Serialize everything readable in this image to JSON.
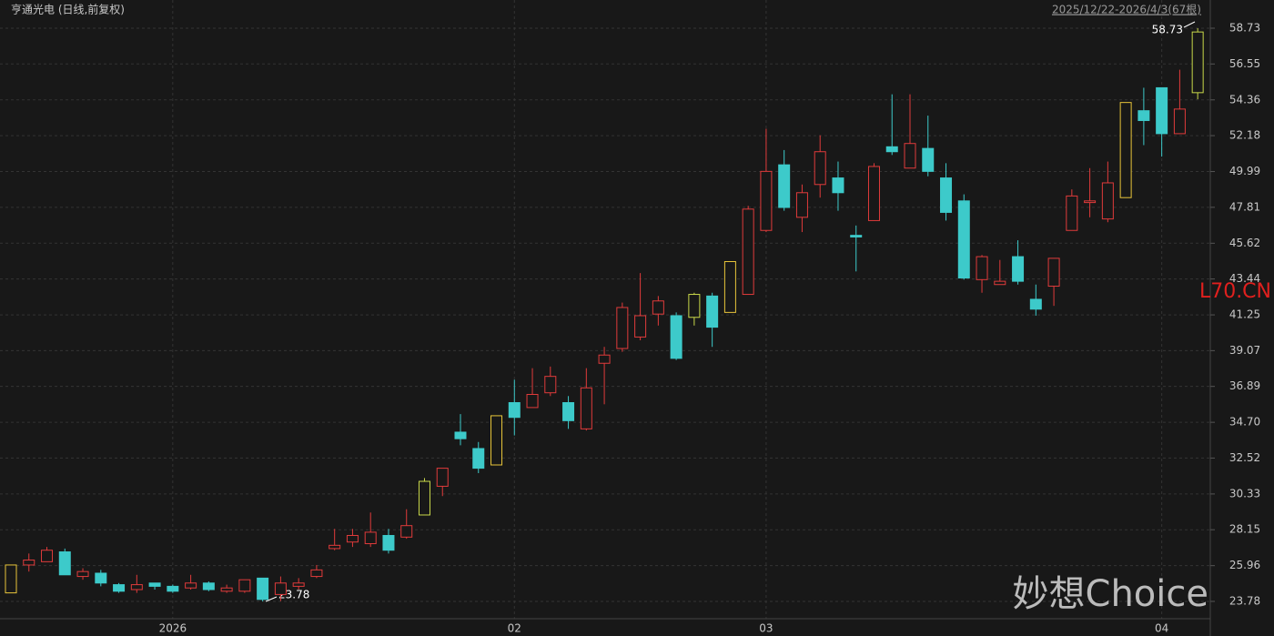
{
  "chart_data": {
    "type": "candlestick",
    "title": "亨通光电 (日线,前复权)",
    "range_label": "2025/12/22-2026/4/3(67根)",
    "max_label": "58.73",
    "min_label": "23.78",
    "code_label": "L70.CN",
    "watermark": "妙想Choice",
    "categories": [
      null,
      null,
      null,
      null,
      null,
      null,
      null,
      null,
      null,
      null,
      null,
      null,
      null,
      null,
      null,
      null,
      null,
      null,
      null,
      null,
      null,
      null,
      null,
      null,
      null,
      null,
      null,
      null,
      null,
      null,
      null,
      null,
      null,
      null,
      null,
      null,
      null,
      null,
      null,
      null,
      null,
      null,
      null,
      null,
      null,
      null,
      null,
      null,
      null,
      null,
      null,
      null,
      null,
      null,
      null,
      null,
      null,
      null,
      null,
      null,
      null,
      null,
      null,
      null,
      null,
      null,
      null
    ],
    "open": [
      24.3,
      26.0,
      26.2,
      26.8,
      25.3,
      25.5,
      24.8,
      24.5,
      24.9,
      24.7,
      24.6,
      24.9,
      24.4,
      24.4,
      25.2,
      24.2,
      24.7,
      25.3,
      27.0,
      27.4,
      27.3,
      27.8,
      27.7,
      29.05,
      30.8,
      34.1,
      33.1,
      32.1,
      35.9,
      35.6,
      36.5,
      35.9,
      34.3,
      38.3,
      39.2,
      39.9,
      41.3,
      41.2,
      41.1,
      42.4,
      41.4,
      42.5,
      46.4,
      50.4,
      47.2,
      49.2,
      49.6,
      46.1,
      47.0,
      51.5,
      50.2,
      51.4,
      49.6,
      48.2,
      43.4,
      43.1,
      44.8,
      42.2,
      43.0,
      46.4,
      48.1,
      47.1,
      48.4,
      53.7,
      55.1,
      52.3,
      54.8
    ],
    "high": [
      26.0,
      26.7,
      27.1,
      27.0,
      25.8,
      25.7,
      24.9,
      25.4,
      24.9,
      24.8,
      25.4,
      25.0,
      24.8,
      25.1,
      25.2,
      25.3,
      25.2,
      26.0,
      28.2,
      28.2,
      29.2,
      28.2,
      29.4,
      31.3,
      31.9,
      35.2,
      33.5,
      35.1,
      37.3,
      38.0,
      38.1,
      36.3,
      38.0,
      39.3,
      42.0,
      43.8,
      42.4,
      41.4,
      42.6,
      42.6,
      44.5,
      47.9,
      52.6,
      51.3,
      49.2,
      52.2,
      50.6,
      46.7,
      50.5,
      54.7,
      54.7,
      53.4,
      50.5,
      48.6,
      44.9,
      44.6,
      45.8,
      43.1,
      44.7,
      48.9,
      50.2,
      50.6,
      54.2,
      55.1,
      55.1,
      56.2,
      58.73
    ],
    "low": [
      24.3,
      25.6,
      26.2,
      25.4,
      25.1,
      24.7,
      24.3,
      24.3,
      24.5,
      24.3,
      24.5,
      24.4,
      24.3,
      24.3,
      23.78,
      23.8,
      24.5,
      25.2,
      26.9,
      27.1,
      27.1,
      26.7,
      27.6,
      29.05,
      30.2,
      33.3,
      31.6,
      32.1,
      33.9,
      35.6,
      36.3,
      34.3,
      34.2,
      35.8,
      39.0,
      39.7,
      40.6,
      38.5,
      40.6,
      39.3,
      41.4,
      42.5,
      46.3,
      47.6,
      46.3,
      48.4,
      47.6,
      43.9,
      47.0,
      51.0,
      50.2,
      49.7,
      47.0,
      43.4,
      42.6,
      43.1,
      43.1,
      41.2,
      41.8,
      46.4,
      47.2,
      46.9,
      48.4,
      51.6,
      50.9,
      52.3,
      54.4
    ],
    "close": [
      26.0,
      26.3,
      26.9,
      25.4,
      25.6,
      24.9,
      24.4,
      24.8,
      24.7,
      24.4,
      24.9,
      24.5,
      24.6,
      25.1,
      23.9,
      24.9,
      24.9,
      25.7,
      27.2,
      27.8,
      28.0,
      26.9,
      28.4,
      31.1,
      31.9,
      33.7,
      31.9,
      35.1,
      35.0,
      36.4,
      37.5,
      34.8,
      36.8,
      38.8,
      41.7,
      41.2,
      42.1,
      38.6,
      42.5,
      40.5,
      44.5,
      47.7,
      50.0,
      47.8,
      48.7,
      51.2,
      48.7,
      46.0,
      50.3,
      51.2,
      51.7,
      50.0,
      47.5,
      43.5,
      44.8,
      43.3,
      43.3,
      41.6,
      44.7,
      48.5,
      48.2,
      49.3,
      54.2,
      53.1,
      52.3,
      53.8,
      58.5
    ],
    "colors": [
      "#e8c53a",
      "#e03b3b",
      "#e03b3b",
      "#3dcaca",
      "#e03b3b",
      "#3dcaca",
      "#3dcaca",
      "#e03b3b",
      "#3dcaca",
      "#3dcaca",
      "#e03b3b",
      "#3dcaca",
      "#e03b3b",
      "#e03b3b",
      "#3dcaca",
      "#e03b3b",
      "#e03b3b",
      "#e03b3b",
      "#e03b3b",
      "#e03b3b",
      "#e03b3b",
      "#3dcaca",
      "#e03b3b",
      "#c9d94a",
      "#e03b3b",
      "#3dcaca",
      "#3dcaca",
      "#e8c53a",
      "#3dcaca",
      "#e03b3b",
      "#e03b3b",
      "#3dcaca",
      "#e03b3b",
      "#e03b3b",
      "#e03b3b",
      "#e03b3b",
      "#e03b3b",
      "#3dcaca",
      "#c9d94a",
      "#3dcaca",
      "#e8c53a",
      "#e03b3b",
      "#e03b3b",
      "#3dcaca",
      "#e03b3b",
      "#e03b3b",
      "#3dcaca",
      "#3dcaca",
      "#e03b3b",
      "#3dcaca",
      "#e03b3b",
      "#3dcaca",
      "#3dcaca",
      "#3dcaca",
      "#e03b3b",
      "#e03b3b",
      "#3dcaca",
      "#3dcaca",
      "#e03b3b",
      "#e03b3b",
      "#e03b3b",
      "#e03b3b",
      "#e8c53a",
      "#3dcaca",
      "#3dcaca",
      "#e03b3b",
      "#c9d94a"
    ],
    "ylim": [
      21.67,
      60.45
    ],
    "yticks": [
      23.78,
      25.96,
      28.15,
      30.33,
      32.52,
      {
        "value": 34.7,
        "label": "34.70"
      },
      36.89,
      39.07,
      41.25,
      43.44,
      45.62,
      47.81,
      49.99,
      52.18,
      54.36,
      56.55,
      58.73
    ],
    "xticks": [
      {
        "value": 9,
        "label": "2026"
      },
      {
        "value": 28,
        "label": "02"
      },
      {
        "value": 42,
        "label": "03"
      },
      {
        "value": 64,
        "label": "04"
      }
    ],
    "grid": true
  }
}
